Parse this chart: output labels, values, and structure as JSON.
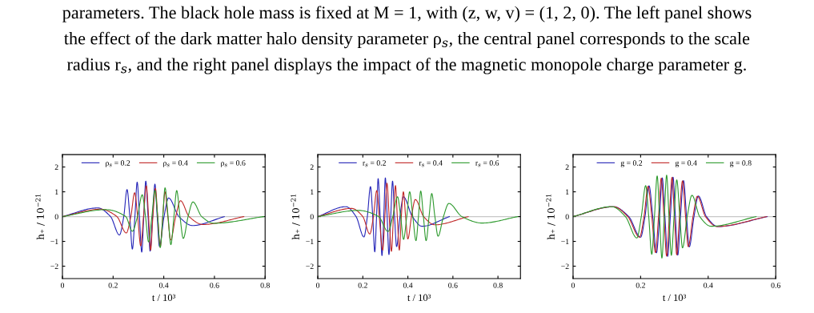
{
  "chart_data": [
    {
      "type": "line",
      "xlabel": "t / 10³",
      "ylabel": "h₊ / 10$^{−21}$",
      "xlim": [
        0,
        0.8
      ],
      "ylim": [
        -2.5,
        2.5
      ],
      "xticks": [
        0,
        0.2,
        0.4,
        0.6,
        0.8
      ],
      "yticks": [
        -2,
        -1,
        0,
        1,
        2
      ],
      "legend": "top",
      "grid": false,
      "line_style": "solid",
      "marker": "none",
      "ref_lines": [
        {
          "axis": "y",
          "value": 0,
          "label": null,
          "color": "#c8c8c8"
        }
      ],
      "annotations": [
        "parameters. The black hole mass is fixed at M = 1, with (z, w, v) = (1, 2, 0). The left panel shows",
        "the effect of the dark matter halo density parameter ρ$_{s}$, the central panel corresponds to the scale",
        "radius r$_{s}$, and the right panel displays the impact of the magnetic monopole charge parameter g."
      ],
      "series": [
        {
          "name": "ρ$_{s}$ = 0.2",
          "color": "#2424b8",
          "x": [
            0,
            0.139,
            0.19,
            0.225,
            0.242,
            0.255,
            0.266,
            0.276,
            0.286,
            0.295,
            0.304,
            0.313,
            0.321,
            0.329,
            0.338,
            0.346,
            0.356,
            0.365,
            0.374,
            0.383,
            0.401,
            0.419,
            0.46,
            0.513,
            0.639
          ],
          "values": [
            0,
            0.35,
            0,
            -0.74,
            0,
            1.09,
            0,
            -1.31,
            0,
            1.39,
            0,
            -1.43,
            0,
            1.43,
            0,
            -1.39,
            0,
            1.31,
            0,
            -1.2,
            0,
            0.75,
            0,
            -0.36,
            0
          ]
        },
        {
          "name": "ρ$_{s}$ = 0.4",
          "color": "#c02828",
          "x": [
            0,
            0.15,
            0.215,
            0.252,
            0.27,
            0.285,
            0.297,
            0.309,
            0.32,
            0.331,
            0.34,
            0.348,
            0.357,
            0.367,
            0.376,
            0.386,
            0.396,
            0.405,
            0.416,
            0.427,
            0.447,
            0.466,
            0.5,
            0.555,
            0.716
          ],
          "values": [
            0,
            0.3,
            0,
            -0.66,
            0,
            0.96,
            0,
            -1.18,
            0,
            1.24,
            0,
            -1.35,
            0,
            1.14,
            0,
            -1.22,
            0,
            1.0,
            0,
            -0.94,
            0,
            0.64,
            0,
            -0.32,
            0
          ]
        },
        {
          "name": "ρ$_{s}$ = 0.6",
          "color": "#2e9a2e",
          "x": [
            0,
            0.17,
            0.25,
            0.276,
            0.296,
            0.315,
            0.328,
            0.34,
            0.353,
            0.365,
            0.376,
            0.386,
            0.396,
            0.405,
            0.417,
            0.428,
            0.44,
            0.451,
            0.464,
            0.477,
            0.496,
            0.515,
            0.55,
            0.597,
            0.795
          ],
          "values": [
            0,
            0.28,
            0,
            -0.59,
            0,
            0.88,
            0,
            -1.02,
            0,
            1.05,
            0,
            -1.25,
            0,
            1.16,
            0,
            -1.13,
            0,
            1.05,
            0,
            -0.88,
            0,
            0.59,
            0,
            -0.27,
            0
          ]
        }
      ]
    },
    {
      "type": "line",
      "xlabel": "t / 10³",
      "ylabel": "h₊ / 10$^{−21}$",
      "xlim": [
        0,
        0.9
      ],
      "ylim": [
        -2.5,
        2.5
      ],
      "xticks": [
        0,
        0.2,
        0.4,
        0.6,
        0.8
      ],
      "yticks": [
        -2,
        -1,
        0,
        1,
        2
      ],
      "legend": "top",
      "grid": false,
      "line_style": "solid",
      "marker": "none",
      "ref_lines": [
        {
          "axis": "y",
          "value": 0,
          "label": null,
          "color": "#c8c8c8"
        }
      ],
      "series": [
        {
          "name": "r$_{s}$ = 0.2",
          "color": "#2424b8",
          "x": [
            0,
            0.125,
            0.17,
            0.205,
            0.22,
            0.234,
            0.244,
            0.253,
            0.261,
            0.268,
            0.277,
            0.285,
            0.293,
            0.3,
            0.308,
            0.316,
            0.324,
            0.332,
            0.341,
            0.35,
            0.365,
            0.38,
            0.42,
            0.463,
            0.584
          ],
          "values": [
            0,
            0.4,
            0,
            -0.82,
            0,
            1.21,
            0,
            -1.42,
            0,
            1.53,
            0,
            -1.57,
            0,
            1.56,
            0,
            -1.53,
            0,
            1.43,
            0,
            -1.21,
            0,
            0.8,
            0,
            -0.39,
            0
          ]
        },
        {
          "name": "r$_{s}$ = 0.4",
          "color": "#c02828",
          "x": [
            0,
            0.15,
            0.2,
            0.231,
            0.247,
            0.262,
            0.273,
            0.288,
            0.298,
            0.307,
            0.317,
            0.327,
            0.336,
            0.345,
            0.353,
            0.362,
            0.371,
            0.38,
            0.39,
            0.4,
            0.416,
            0.433,
            0.47,
            0.52,
            0.668
          ],
          "values": [
            0,
            0.33,
            0,
            -0.7,
            0,
            1.05,
            0,
            -1.35,
            0,
            1.35,
            0,
            -1.4,
            0,
            1.25,
            0,
            -1.35,
            0,
            1.0,
            0,
            -0.9,
            0,
            0.69,
            0,
            -0.33,
            0
          ]
        },
        {
          "name": "r$_{s}$ = 0.6",
          "color": "#2e9a2e",
          "x": [
            0,
            0.18,
            0.27,
            0.312,
            0.333,
            0.354,
            0.368,
            0.381,
            0.395,
            0.408,
            0.422,
            0.436,
            0.447,
            0.457,
            0.469,
            0.481,
            0.494,
            0.506,
            0.52,
            0.534,
            0.558,
            0.582,
            0.64,
            0.73,
            0.888
          ],
          "values": [
            0,
            0.25,
            0,
            -0.6,
            0,
            0.8,
            0,
            -0.92,
            0,
            1.0,
            0,
            -0.97,
            0,
            1.03,
            0,
            -0.97,
            0,
            0.93,
            0,
            -0.79,
            0,
            0.53,
            0,
            -0.26,
            0
          ]
        }
      ]
    },
    {
      "type": "line",
      "xlabel": "t / 10³",
      "ylabel": "h₊ / 10$^{−21}$",
      "xlim": [
        0,
        0.6
      ],
      "ylim": [
        -2.5,
        2.5
      ],
      "xticks": [
        0,
        0.2,
        0.4,
        0.6
      ],
      "yticks": [
        -2,
        -1,
        0,
        1,
        2
      ],
      "legend": "top",
      "grid": false,
      "line_style": "solid",
      "marker": "none",
      "ref_lines": [
        {
          "axis": "y",
          "value": 0,
          "label": null,
          "color": "#c8c8c8"
        }
      ],
      "series": [
        {
          "name": "g = 0.2",
          "color": "#2424b8",
          "x": [
            0,
            0.12,
            0.165,
            0.2,
            0.213,
            0.225,
            0.236,
            0.247,
            0.256,
            0.264,
            0.272,
            0.28,
            0.288,
            0.296,
            0.303,
            0.31,
            0.318,
            0.327,
            0.336,
            0.344,
            0.358,
            0.371,
            0.395,
            0.429,
            0.575
          ],
          "values": [
            0,
            0.4,
            0,
            -0.83,
            0,
            1.24,
            0,
            -1.46,
            0,
            1.56,
            0,
            -1.6,
            0,
            1.59,
            0,
            -1.55,
            0,
            1.45,
            0,
            -1.22,
            0,
            0.83,
            0,
            -0.4,
            0
          ]
        },
        {
          "name": "g = 0.4",
          "color": "#c02828",
          "x": [
            0,
            0.12,
            0.162,
            0.197,
            0.21,
            0.222,
            0.233,
            0.244,
            0.253,
            0.261,
            0.269,
            0.277,
            0.285,
            0.293,
            0.3,
            0.307,
            0.315,
            0.324,
            0.333,
            0.341,
            0.355,
            0.368,
            0.392,
            0.426,
            0.573
          ],
          "values": [
            0,
            0.4,
            0,
            -0.83,
            0,
            1.22,
            0,
            -1.45,
            0,
            1.55,
            0,
            -1.59,
            0,
            1.58,
            0,
            -1.54,
            0,
            1.44,
            0,
            -1.21,
            0,
            0.82,
            0,
            -0.4,
            0
          ]
        },
        {
          "name": "g = 0.8",
          "color": "#2e9a2e",
          "x": [
            0,
            0.115,
            0.155,
            0.189,
            0.202,
            0.215,
            0.224,
            0.233,
            0.241,
            0.249,
            0.256,
            0.263,
            0.27,
            0.277,
            0.284,
            0.291,
            0.299,
            0.307,
            0.316,
            0.324,
            0.338,
            0.352,
            0.375,
            0.409,
            0.542
          ],
          "values": [
            0,
            0.4,
            0,
            -0.86,
            0,
            1.25,
            0,
            -1.52,
            0,
            1.64,
            0,
            -1.67,
            0,
            1.67,
            0,
            -1.56,
            0,
            1.48,
            0,
            -1.26,
            0,
            0.86,
            0,
            -0.39,
            0
          ]
        }
      ]
    }
  ]
}
